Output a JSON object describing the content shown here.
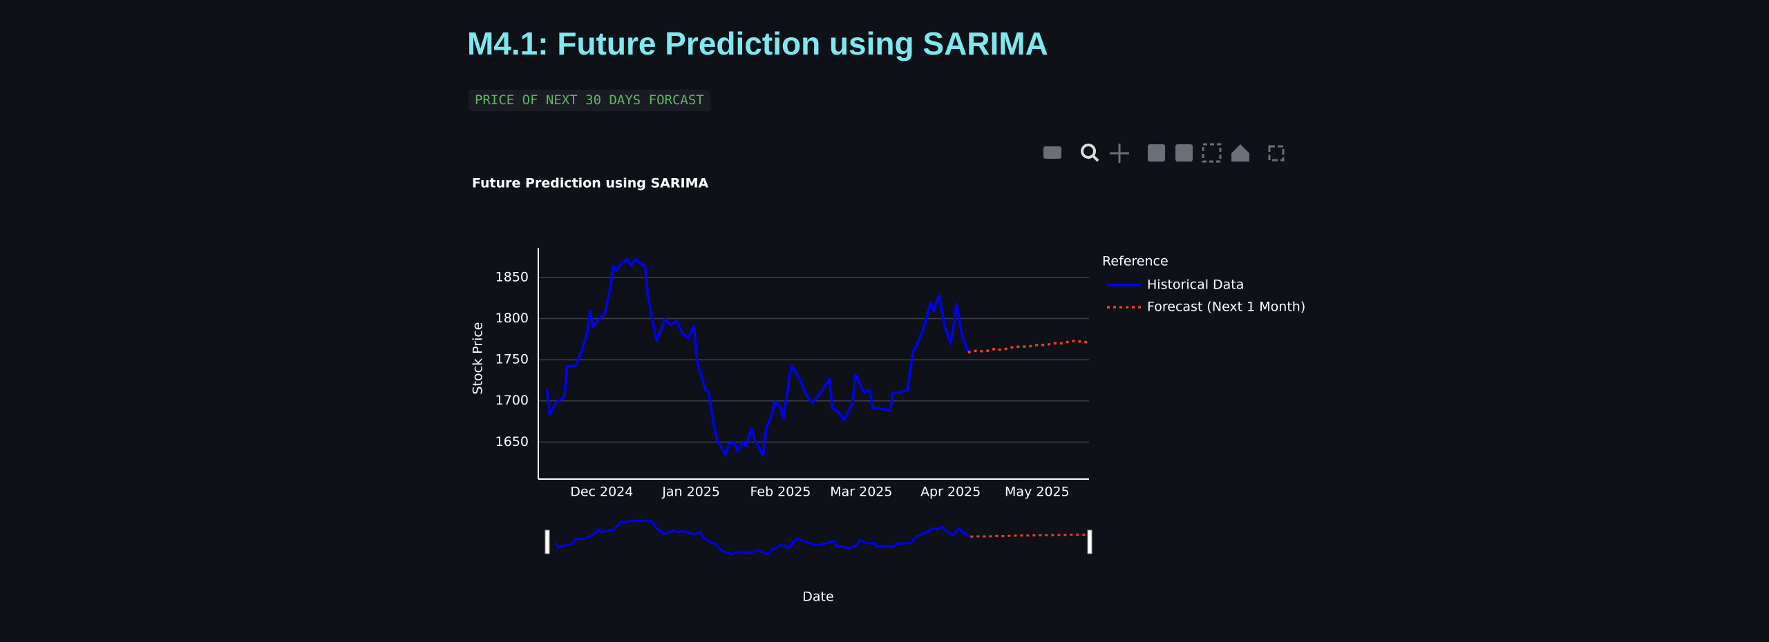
{
  "header": {
    "title": "M4.1: Future Prediction using SARIMA",
    "badge": "PRICE OF NEXT 30 DAYS FORCAST"
  },
  "chart_data": {
    "type": "line",
    "title": "Future Prediction using SARIMA",
    "xlabel": "Date",
    "ylabel": "Stock Price",
    "legend_title": "Reference",
    "legend": "right",
    "grid": true,
    "rangeslider": true,
    "xlim": [
      "2024-11-09",
      "2025-05-19"
    ],
    "xticks": [
      {
        "value": "2024-12-01",
        "label": "Dec 2024"
      },
      {
        "value": "2025-01-01",
        "label": "Jan 2025"
      },
      {
        "value": "2025-02-01",
        "label": "Feb 2025"
      },
      {
        "value": "2025-03-01",
        "label": "Mar 2025"
      },
      {
        "value": "2025-04-01",
        "label": "Apr 2025"
      },
      {
        "value": "2025-05-01",
        "label": "May 2025"
      }
    ],
    "ylim": [
      1605,
      1886
    ],
    "yticks": [
      1650,
      1700,
      1750,
      1800,
      1850
    ],
    "series": [
      {
        "name": "Historical Data",
        "color": "#0000ff",
        "dash": "solid",
        "x": [
          "2024-11-12",
          "2024-11-13",
          "2024-11-15",
          "2024-11-18",
          "2024-11-19",
          "2024-11-22",
          "2024-11-24",
          "2024-11-26",
          "2024-11-27",
          "2024-11-28",
          "2024-11-30",
          "2024-12-02",
          "2024-12-04",
          "2024-12-05",
          "2024-12-06",
          "2024-12-08",
          "2024-12-10",
          "2024-12-11",
          "2024-12-13",
          "2024-12-14",
          "2024-12-16",
          "2024-12-17",
          "2024-12-20",
          "2024-12-23",
          "2024-12-25",
          "2024-12-27",
          "2024-12-29",
          "2024-12-31",
          "2025-01-02",
          "2025-01-03",
          "2025-01-06",
          "2025-01-07",
          "2025-01-09",
          "2025-01-10",
          "2025-01-13",
          "2025-01-14",
          "2025-01-16",
          "2025-01-17",
          "2025-01-19",
          "2025-01-20",
          "2025-01-22",
          "2025-01-23",
          "2025-01-26",
          "2025-01-27",
          "2025-01-29",
          "2025-01-30",
          "2025-02-01",
          "2025-02-02",
          "2025-02-04",
          "2025-02-05",
          "2025-02-08",
          "2025-02-10",
          "2025-02-12",
          "2025-02-15",
          "2025-02-18",
          "2025-02-19",
          "2025-02-21",
          "2025-02-23",
          "2025-02-26",
          "2025-02-27",
          "2025-03-02",
          "2025-03-04",
          "2025-03-05",
          "2025-03-07",
          "2025-03-11",
          "2025-03-12",
          "2025-03-14",
          "2025-03-17",
          "2025-03-19",
          "2025-03-21",
          "2025-03-23",
          "2025-03-25",
          "2025-03-26",
          "2025-03-28",
          "2025-03-30",
          "2025-04-01",
          "2025-04-02",
          "2025-04-03",
          "2025-04-05",
          "2025-04-07"
        ],
        "values": [
          1714,
          1683,
          1697,
          1705,
          1742,
          1743,
          1760,
          1783,
          1809,
          1790,
          1799,
          1805,
          1838,
          1864,
          1858,
          1868,
          1872,
          1864,
          1872,
          1868,
          1864,
          1828,
          1773,
          1799,
          1792,
          1797,
          1782,
          1776,
          1791,
          1749,
          1713,
          1712,
          1669,
          1653,
          1634,
          1647,
          1650,
          1639,
          1650,
          1645,
          1666,
          1653,
          1634,
          1666,
          1683,
          1699,
          1693,
          1679,
          1727,
          1743,
          1724,
          1707,
          1697,
          1710,
          1727,
          1691,
          1687,
          1677,
          1697,
          1732,
          1710,
          1713,
          1691,
          1691,
          1688,
          1710,
          1710,
          1713,
          1760,
          1773,
          1792,
          1820,
          1809,
          1828,
          1790,
          1770,
          1790,
          1818,
          1779,
          1760
        ]
      },
      {
        "name": "Forecast (Next 1 Month)",
        "color": "#e8412c",
        "dash": "dot",
        "x": [
          "2025-04-07",
          "2025-04-10",
          "2025-04-13",
          "2025-04-16",
          "2025-04-19",
          "2025-04-22",
          "2025-04-25",
          "2025-04-28",
          "2025-05-01",
          "2025-05-04",
          "2025-05-07",
          "2025-05-10",
          "2025-05-13",
          "2025-05-16",
          "2025-05-19"
        ],
        "values": [
          1759,
          1761,
          1760,
          1763,
          1762,
          1765,
          1766,
          1766,
          1768,
          1768,
          1770,
          1770,
          1773,
          1772,
          1771
        ]
      }
    ]
  }
}
